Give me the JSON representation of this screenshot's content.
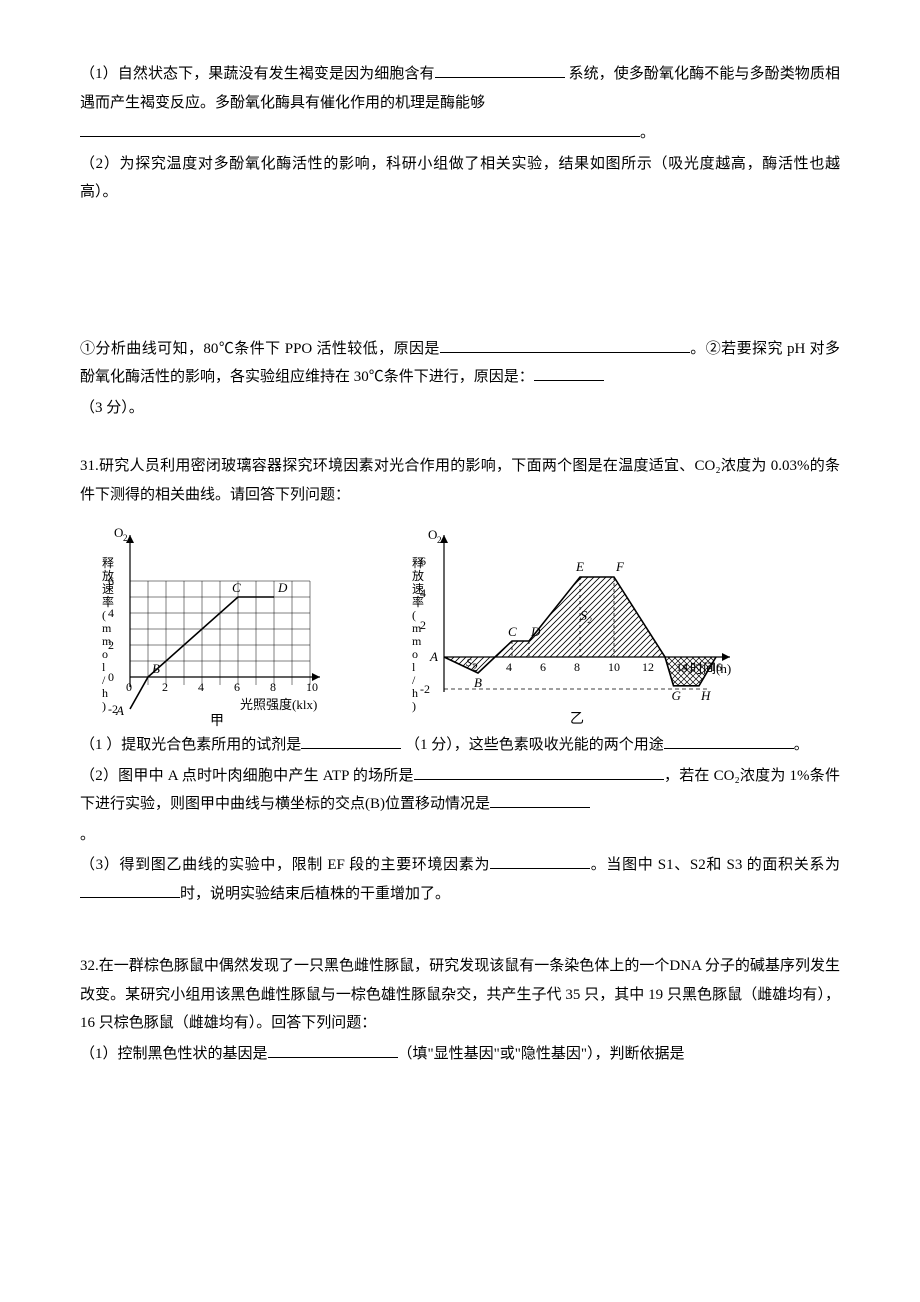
{
  "q30": {
    "p1a": "（1）自然状态下，果蔬没有发生褐变是因为细胞含有",
    "p1b": " 系统，使多酚氧化酶不能与多酚类物质相遇而产生褐变反应。多酚氧化酶具有催化作用的机理是酶能够",
    "p1c": "。",
    "p2": "（2）为探究温度对多酚氧化酶活性的影响，科研小组做了相关实验，结果如图所示（吸光度越高，酶活性也越高）。",
    "p3a": "①分析曲线可知，80℃条件下 PPO 活性较低，原因是",
    "p3b": "。②若要探究 pH 对多酚氧化酶活性的影响，各实验组应维持在 30℃条件下进行，原因是：",
    "p3c": "（3 分）。"
  },
  "q31": {
    "intro": "31.研究人员利用密闭玻璃容器探究环境因素对光合作用的影响，下面两个图是在温度适宜、CO₂浓度为 0.03%的条件下测得的相关曲线。请回答下列问题：",
    "p1a": "（1 ）提取光合色素所用的试剂是",
    "p1b": " （1 分），这些色素吸收光能的两个用途",
    "p1c": "。",
    "p2a": "（2）图甲中 A 点时叶肉细胞中产生 ATP 的场所是",
    "p2b": "，若在 CO₂浓度为 1%条件下进行实验，则图甲中曲线与横坐标的交点(B)位置移动情况是",
    "p2c": "。",
    "p3a": "（3）得到图乙曲线的实验中，限制 EF 段的主要环境因素为",
    "p3b": "。当图中 S1、S2和 S3 的面积关系为",
    "p3c": "时，说明实验结束后植株的干重增加了。"
  },
  "q32": {
    "intro": "32.在一群棕色豚鼠中偶然发现了一只黑色雌性豚鼠，研究发现该鼠有一条染色体上的一个DNA 分子的碱基序列发生改变。某研究小组用该黑色雌性豚鼠与一棕色雄性豚鼠杂交，共产生子代 35 只，其中 19 只黑色豚鼠（雌雄均有），16 只棕色豚鼠（雌雄均有）。回答下列问题：",
    "p1a": "（1）控制黑色性状的基因是",
    "p1b": "（填\"显性基因\"或\"隐性基因\"），判断依据是"
  },
  "chart1": {
    "x_ticks": [
      0,
      2,
      4,
      6,
      8,
      10
    ],
    "y_ticks": [
      -2,
      0,
      2,
      4,
      6
    ],
    "y_label_top": "O₂",
    "y_label_side": "释放速率(mmol/h)",
    "x_label": "光照强度(klx)",
    "caption": "甲",
    "points": {
      "A": "A",
      "B": "B",
      "C": "C",
      "D": "D"
    },
    "line": [
      [
        0,
        -2
      ],
      [
        1,
        0
      ],
      [
        6,
        5
      ],
      [
        8,
        5
      ]
    ],
    "grid_color": "#000000",
    "bg": "#ffffff",
    "font_size": 12
  },
  "chart2": {
    "x_ticks": [
      2,
      4,
      6,
      8,
      10,
      12,
      14,
      16
    ],
    "y_ticks": [
      -2,
      2,
      4,
      6
    ],
    "y_label_top": "O₂",
    "y_label_side": "释放速率(mmol/h)",
    "x_label": "时间(h)",
    "caption": "乙",
    "labels": {
      "A": "A",
      "B": "B",
      "C": "C",
      "D": "D",
      "E": "E",
      "F": "F",
      "G": "G",
      "H": "H",
      "S1": "S₁",
      "S2": "S₂",
      "S3": "S₃"
    },
    "curve": [
      [
        0,
        0
      ],
      [
        2,
        -1
      ],
      [
        3,
        0
      ],
      [
        4,
        1
      ],
      [
        5,
        1
      ],
      [
        8,
        5
      ],
      [
        10,
        5
      ],
      [
        13,
        0
      ],
      [
        13.5,
        -1.8
      ],
      [
        15,
        -1.8
      ],
      [
        16,
        0
      ]
    ],
    "hatch_color": "#000000",
    "font_size": 12
  }
}
